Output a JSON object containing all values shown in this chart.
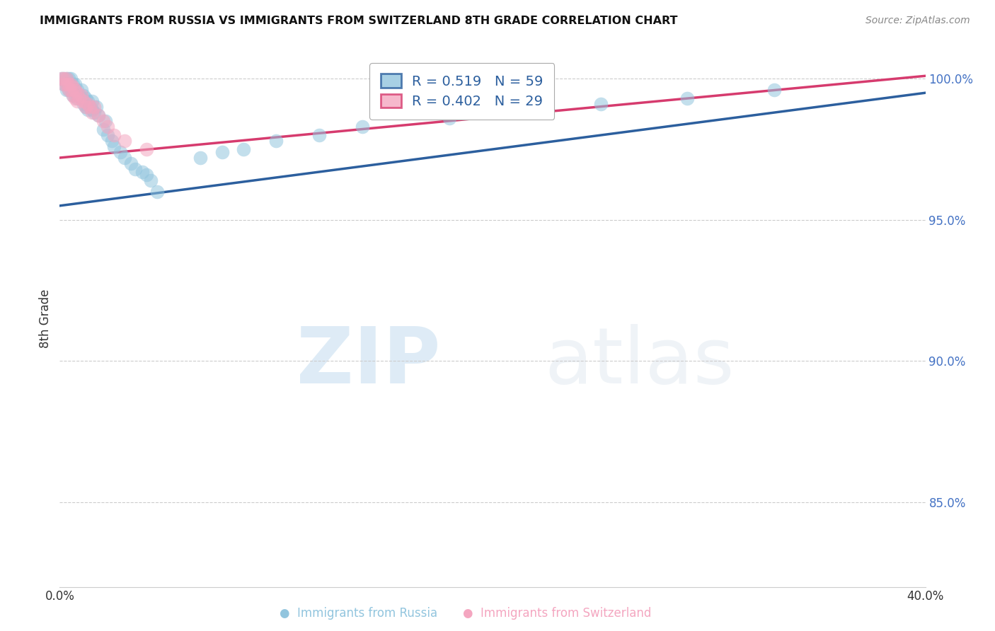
{
  "title": "IMMIGRANTS FROM RUSSIA VS IMMIGRANTS FROM SWITZERLAND 8TH GRADE CORRELATION CHART",
  "source": "Source: ZipAtlas.com",
  "ylabel": "8th Grade",
  "x_min": 0.0,
  "x_max": 0.4,
  "y_min": 0.82,
  "y_max": 1.01,
  "russia_R": 0.519,
  "russia_N": 59,
  "switzerland_R": 0.402,
  "switzerland_N": 29,
  "russia_color": "#92c5de",
  "switzerland_color": "#f4a6c0",
  "russia_line_color": "#2c5f9e",
  "switzerland_line_color": "#d63b6e",
  "legend_text_color": "#2c5f9e",
  "russia_points_x": [
    0.001,
    0.002,
    0.002,
    0.003,
    0.003,
    0.003,
    0.004,
    0.004,
    0.004,
    0.005,
    0.005,
    0.005,
    0.006,
    0.006,
    0.006,
    0.007,
    0.007,
    0.007,
    0.008,
    0.008,
    0.009,
    0.01,
    0.01,
    0.011,
    0.011,
    0.012,
    0.012,
    0.013,
    0.013,
    0.014,
    0.015,
    0.015,
    0.016,
    0.017,
    0.018,
    0.02,
    0.021,
    0.022,
    0.024,
    0.025,
    0.028,
    0.03,
    0.033,
    0.035,
    0.038,
    0.04,
    0.042,
    0.045,
    0.065,
    0.075,
    0.085,
    0.1,
    0.12,
    0.14,
    0.18,
    0.21,
    0.25,
    0.29,
    0.33
  ],
  "russia_points_y": [
    1.0,
    1.0,
    0.998,
    1.0,
    0.998,
    0.996,
    1.0,
    0.998,
    0.996,
    1.0,
    0.998,
    0.996,
    0.998,
    0.996,
    0.994,
    0.998,
    0.996,
    0.994,
    0.996,
    0.993,
    0.994,
    0.996,
    0.993,
    0.994,
    0.991,
    0.993,
    0.99,
    0.992,
    0.989,
    0.99,
    0.992,
    0.989,
    0.988,
    0.99,
    0.987,
    0.982,
    0.985,
    0.98,
    0.978,
    0.976,
    0.974,
    0.972,
    0.97,
    0.968,
    0.967,
    0.966,
    0.964,
    0.96,
    0.972,
    0.974,
    0.975,
    0.978,
    0.98,
    0.983,
    0.986,
    0.988,
    0.991,
    0.993,
    0.996
  ],
  "switzerland_points_x": [
    0.001,
    0.002,
    0.002,
    0.003,
    0.003,
    0.004,
    0.004,
    0.005,
    0.005,
    0.006,
    0.006,
    0.007,
    0.007,
    0.008,
    0.008,
    0.009,
    0.01,
    0.011,
    0.012,
    0.013,
    0.014,
    0.015,
    0.016,
    0.018,
    0.02,
    0.022,
    0.025,
    0.03,
    0.04
  ],
  "switzerland_points_y": [
    1.0,
    1.0,
    0.998,
    1.0,
    0.998,
    0.998,
    0.996,
    0.998,
    0.996,
    0.997,
    0.994,
    0.996,
    0.993,
    0.995,
    0.992,
    0.993,
    0.994,
    0.992,
    0.99,
    0.991,
    0.99,
    0.988,
    0.99,
    0.987,
    0.985,
    0.983,
    0.98,
    0.978,
    0.975
  ],
  "russia_line_x": [
    0.0,
    0.4
  ],
  "russia_line_y": [
    0.955,
    0.995
  ],
  "switzerland_line_x": [
    0.0,
    0.4
  ],
  "switzerland_line_y": [
    0.972,
    1.001
  ],
  "watermark_zip": "ZIP",
  "watermark_atlas": "atlas",
  "marker_size": 200
}
